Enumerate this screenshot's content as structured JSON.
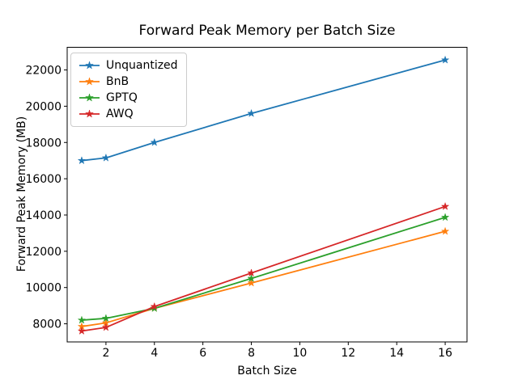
{
  "chart_data": {
    "type": "line",
    "title": "Forward Peak Memory per Batch Size",
    "xlabel": "Batch Size",
    "ylabel": "Forward Peak Memory (MB)",
    "x": [
      1,
      2,
      4,
      8,
      16
    ],
    "series": [
      {
        "name": "Unquantized",
        "color": "#1f77b4",
        "values": [
          17000,
          17150,
          18000,
          19600,
          22550
        ]
      },
      {
        "name": "BnB",
        "color": "#ff7f0e",
        "values": [
          7850,
          8050,
          8850,
          10250,
          13100
        ]
      },
      {
        "name": "GPTQ",
        "color": "#2ca02c",
        "values": [
          8200,
          8300,
          8850,
          10500,
          13870
        ]
      },
      {
        "name": "AWQ",
        "color": "#d62728",
        "values": [
          7600,
          7800,
          8950,
          10800,
          14470
        ]
      }
    ],
    "xticks": [
      2,
      4,
      6,
      8,
      10,
      12,
      14,
      16
    ],
    "yticks": [
      8000,
      10000,
      12000,
      14000,
      16000,
      18000,
      20000,
      22000
    ],
    "xlim": [
      0.4,
      16.9
    ],
    "ylim": [
      7000,
      23250
    ],
    "marker": "star",
    "grid": false,
    "legend_position": "upper-left",
    "axis_color": "#000000",
    "legend_border_color": "#cccccc",
    "background": "#ffffff"
  }
}
